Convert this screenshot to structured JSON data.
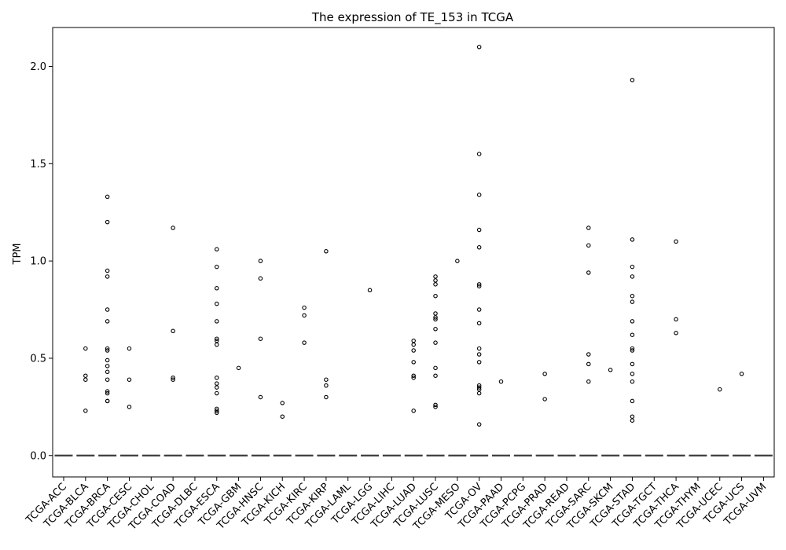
{
  "chart_data": {
    "type": "box",
    "title": "The expression of TE_153 in TCGA",
    "xlabel": "",
    "ylabel": "TPM",
    "ylim": [
      -0.11,
      2.2
    ],
    "yticks": [
      0.0,
      0.5,
      1.0,
      1.5,
      2.0
    ],
    "ytick_labels": [
      "0.0",
      "0.5",
      "1.0",
      "1.5",
      "2.0"
    ],
    "grid": false,
    "categories": [
      "TCGA-ACC",
      "TCGA-BLCA",
      "TCGA-BRCA",
      "TCGA-CESC",
      "TCGA-CHOL",
      "TCGA-COAD",
      "TCGA-DLBC",
      "TCGA-ESCA",
      "TCGA-GBM",
      "TCGA-HNSC",
      "TCGA-KICH",
      "TCGA-KIRC",
      "TCGA-KIRP",
      "TCGA-LAML",
      "TCGA-LGG",
      "TCGA-LIHC",
      "TCGA-LUAD",
      "TCGA-LUSC",
      "TCGA-MESO",
      "TCGA-OV",
      "TCGA-PAAD",
      "TCGA-PCPG",
      "TCGA-PRAD",
      "TCGA-READ",
      "TCGA-SARC",
      "TCGA-SKCM",
      "TCGA-STAD",
      "TCGA-TGCT",
      "TCGA-THCA",
      "TCGA-THYM",
      "TCGA-UCEC",
      "TCGA-UCS",
      "TCGA-UVM"
    ],
    "box_summary": {
      "q1": 0.0,
      "median": 0.0,
      "q3": 0.0,
      "whisker_low": 0.0,
      "whisker_high": 0.0
    },
    "outliers": [
      [],
      [
        0.55,
        0.41,
        0.39,
        0.23
      ],
      [
        1.33,
        1.2,
        0.95,
        0.92,
        0.75,
        0.69,
        0.55,
        0.54,
        0.49,
        0.46,
        0.43,
        0.39,
        0.33,
        0.32,
        0.28,
        0.28
      ],
      [
        0.55,
        0.39,
        0.25
      ],
      [],
      [
        1.17,
        0.64,
        0.4,
        0.39
      ],
      [],
      [
        1.06,
        0.97,
        0.86,
        0.78,
        0.69,
        0.6,
        0.59,
        0.57,
        0.4,
        0.37,
        0.35,
        0.32,
        0.24,
        0.23,
        0.22
      ],
      [
        0.45
      ],
      [
        1.0,
        0.91,
        0.6,
        0.3
      ],
      [
        0.27,
        0.2
      ],
      [
        0.76,
        0.72,
        0.58
      ],
      [
        1.05,
        0.39,
        0.36,
        0.3
      ],
      [],
      [
        0.85
      ],
      [],
      [
        0.59,
        0.57,
        0.54,
        0.48,
        0.41,
        0.4,
        0.23
      ],
      [
        0.92,
        0.9,
        0.88,
        0.82,
        0.73,
        0.71,
        0.7,
        0.65,
        0.58,
        0.45,
        0.41,
        0.26,
        0.25
      ],
      [
        1.0
      ],
      [
        2.1,
        1.55,
        1.34,
        1.16,
        1.07,
        0.88,
        0.87,
        0.75,
        0.68,
        0.55,
        0.52,
        0.48,
        0.36,
        0.35,
        0.34,
        0.32,
        0.16
      ],
      [
        0.38
      ],
      [],
      [
        0.42,
        0.29
      ],
      [],
      [
        1.17,
        1.08,
        0.94,
        0.52,
        0.47,
        0.38
      ],
      [
        0.44
      ],
      [
        1.93,
        1.11,
        0.97,
        0.92,
        0.82,
        0.79,
        0.69,
        0.62,
        0.55,
        0.54,
        0.47,
        0.42,
        0.38,
        0.28,
        0.2,
        0.18
      ],
      [],
      [
        1.1,
        0.7,
        0.63
      ],
      [],
      [
        0.34
      ],
      [
        0.42
      ],
      []
    ]
  }
}
